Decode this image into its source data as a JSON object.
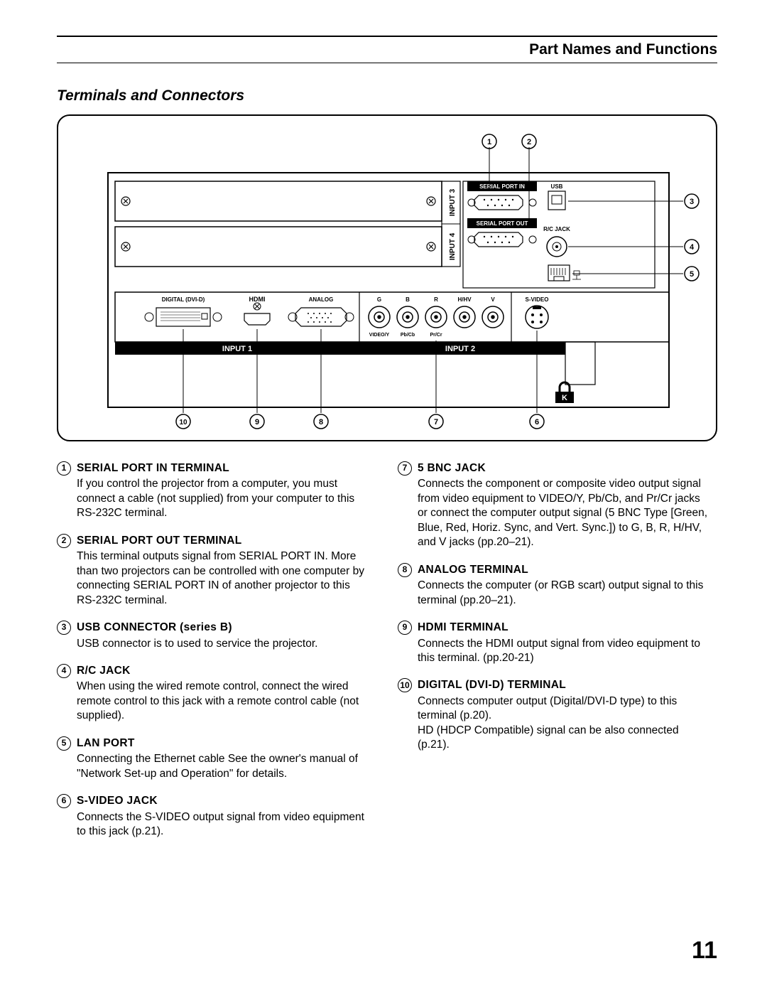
{
  "header": {
    "title": "Part Names and Functions"
  },
  "section_title": "Terminals and Connectors",
  "page_number": "11",
  "diagram": {
    "callouts_top": [
      "1",
      "2"
    ],
    "callouts_right": [
      "3",
      "4",
      "5"
    ],
    "callouts_bottom": [
      "10",
      "9",
      "8",
      "7",
      "6"
    ],
    "panel_labels": {
      "input1": "INPUT 1",
      "input2": "INPUT 2",
      "input3": "INPUT 3",
      "input4": "INPUT 4",
      "digital": "DIGITAL (DVI-D)",
      "hdmi": "HDMI",
      "analog": "ANALOG",
      "serial_in": "SERIAL PORT IN",
      "serial_out": "SERIAL PORT OUT",
      "usb": "USB",
      "rcjack": "R/C JACK",
      "svideo": "S-VIDEO",
      "bnc_top": [
        "G",
        "B",
        "R",
        "H/HV",
        "V"
      ],
      "bnc_bot": [
        "VIDEO/Y",
        "Pb/Cb",
        "Pr/Cr"
      ]
    }
  },
  "left_items": [
    {
      "num": "1",
      "title": "SERIAL PORT IN TERMINAL",
      "body": "If you control the projector from a computer, you must connect a cable (not supplied) from your computer to this RS-232C terminal."
    },
    {
      "num": "2",
      "title": "SERIAL PORT OUT TERMINAL",
      "body": "This terminal outputs signal from SERIAL PORT IN. More than two projectors can be controlled with one computer by connecting SERIAL PORT IN of another projector to this RS-232C terminal."
    },
    {
      "num": "3",
      "title": "USB CONNECTOR (series B)",
      "body": "USB connector is to used to service the projector."
    },
    {
      "num": "4",
      "title": "R/C JACK",
      "body": "When using the wired remote control, connect the wired remote control to this jack with a remote control cable (not supplied)."
    },
    {
      "num": "5",
      "title": "LAN PORT",
      "body": "Connecting the Ethernet cable See the owner's manual of \"Network Set-up and Operation\" for details."
    },
    {
      "num": "6",
      "title": "S-VIDEO JACK",
      "body": "Connects the S-VIDEO output signal from video equipment to this jack (p.21)."
    }
  ],
  "right_items": [
    {
      "num": "7",
      "title": "5 BNC JACK",
      "body": "Connects the component or composite video output signal from video equipment to VIDEO/Y, Pb/Cb, and Pr/Cr jacks or connect the computer output signal (5 BNC Type [Green, Blue, Red, Horiz. Sync, and Vert. Sync.]) to G, B, R, H/HV, and V jacks (pp.20–21)."
    },
    {
      "num": "8",
      "title": "ANALOG TERMINAL",
      "body": "Connects the computer (or RGB scart) output signal to this terminal (pp.20–21)."
    },
    {
      "num": "9",
      "title": "HDMI TERMINAL",
      "body": "Connects the HDMI output signal from video equipment to this terminal. (pp.20-21)"
    },
    {
      "num": "10",
      "title": "DIGITAL (DVI-D) TERMINAL",
      "body": "Connects computer output (Digital/DVI-D type) to this terminal (p.20).\nHD (HDCP Compatible) signal can be also connected (p.21)."
    }
  ],
  "colors": {
    "line": "#000000",
    "bg": "#ffffff",
    "label_bg": "#000000",
    "label_fg": "#ffffff"
  }
}
